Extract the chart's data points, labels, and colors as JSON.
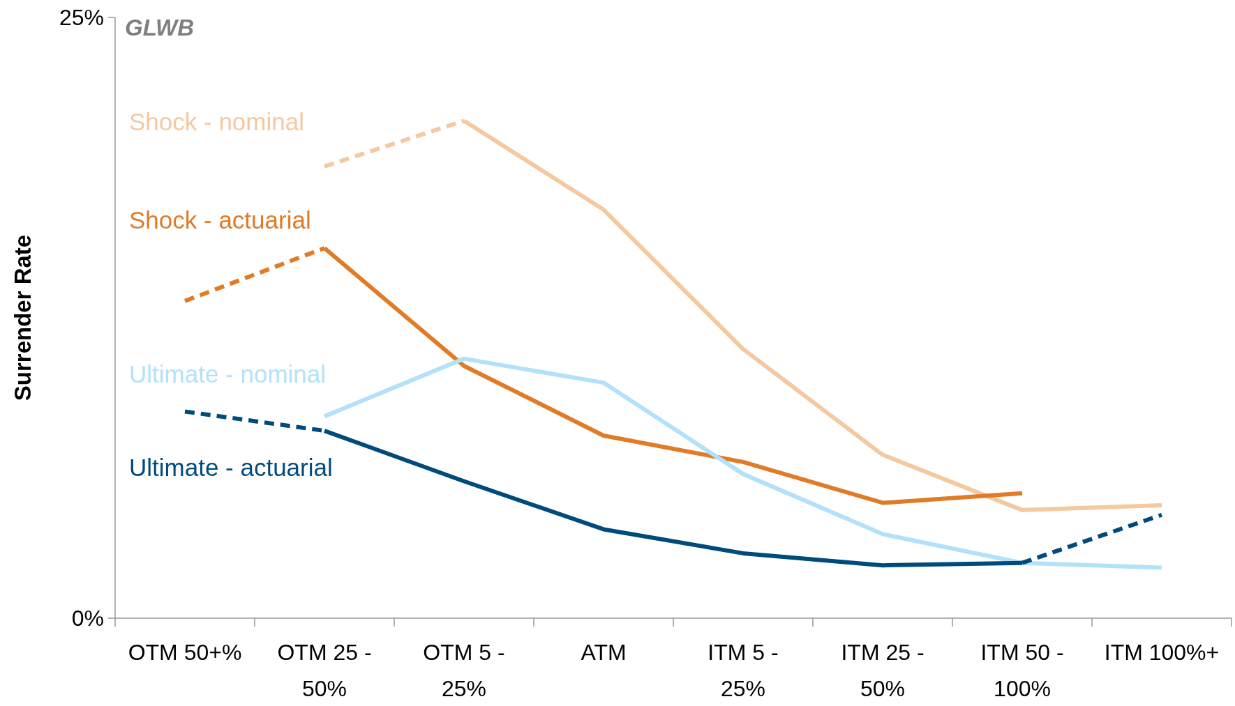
{
  "chart_data": {
    "type": "line",
    "title": "GLWB",
    "ylabel": "Surrender Rate",
    "categories": [
      "OTM 50+%",
      "OTM 25 - 50%",
      "OTM 5 - 25%",
      "ATM",
      "ITM 5 - 25%",
      "ITM 25 - 50%",
      "ITM 50 - 100%",
      "ITM 100%+"
    ],
    "ylim": [
      0,
      25
    ],
    "yticks": [
      {
        "value": 0,
        "label": "0%"
      },
      {
        "value": 25,
        "label": "25%"
      }
    ],
    "grid": false,
    "marker": "none",
    "series": [
      {
        "name": "Shock - nominal",
        "color": "#f5c9a0",
        "line_style": "solid",
        "values": [
          null,
          null,
          20.7,
          17.0,
          11.2,
          6.8,
          4.5,
          4.7
        ]
      },
      {
        "color": "#f5c9a0",
        "line_style": "dashed",
        "values": [
          null,
          18.8,
          20.7,
          null,
          null,
          null,
          null,
          null
        ]
      },
      {
        "name": "Shock - actuarial",
        "color": "#e07b27",
        "line_style": "solid",
        "values": [
          null,
          15.4,
          10.5,
          7.6,
          6.5,
          4.8,
          5.2,
          null
        ]
      },
      {
        "color": "#e07b27",
        "line_style": "dashed",
        "values": [
          13.2,
          15.4,
          null,
          null,
          null,
          null,
          null,
          null
        ]
      },
      {
        "name": "Ultimate - nominal",
        "color": "#b3e0fb",
        "line_style": "solid",
        "values": [
          null,
          8.4,
          10.8,
          9.8,
          6.0,
          3.5,
          2.3,
          2.1
        ]
      },
      {
        "name": "Ultimate - actuarial",
        "color": "#004b7c",
        "line_style": "solid",
        "values": [
          null,
          7.8,
          5.7,
          3.7,
          2.7,
          2.2,
          2.3,
          null
        ]
      },
      {
        "color": "#004b7c",
        "line_style": "dashed",
        "values": [
          8.6,
          7.8,
          null,
          null,
          null,
          null,
          2.3,
          4.3
        ]
      }
    ]
  }
}
